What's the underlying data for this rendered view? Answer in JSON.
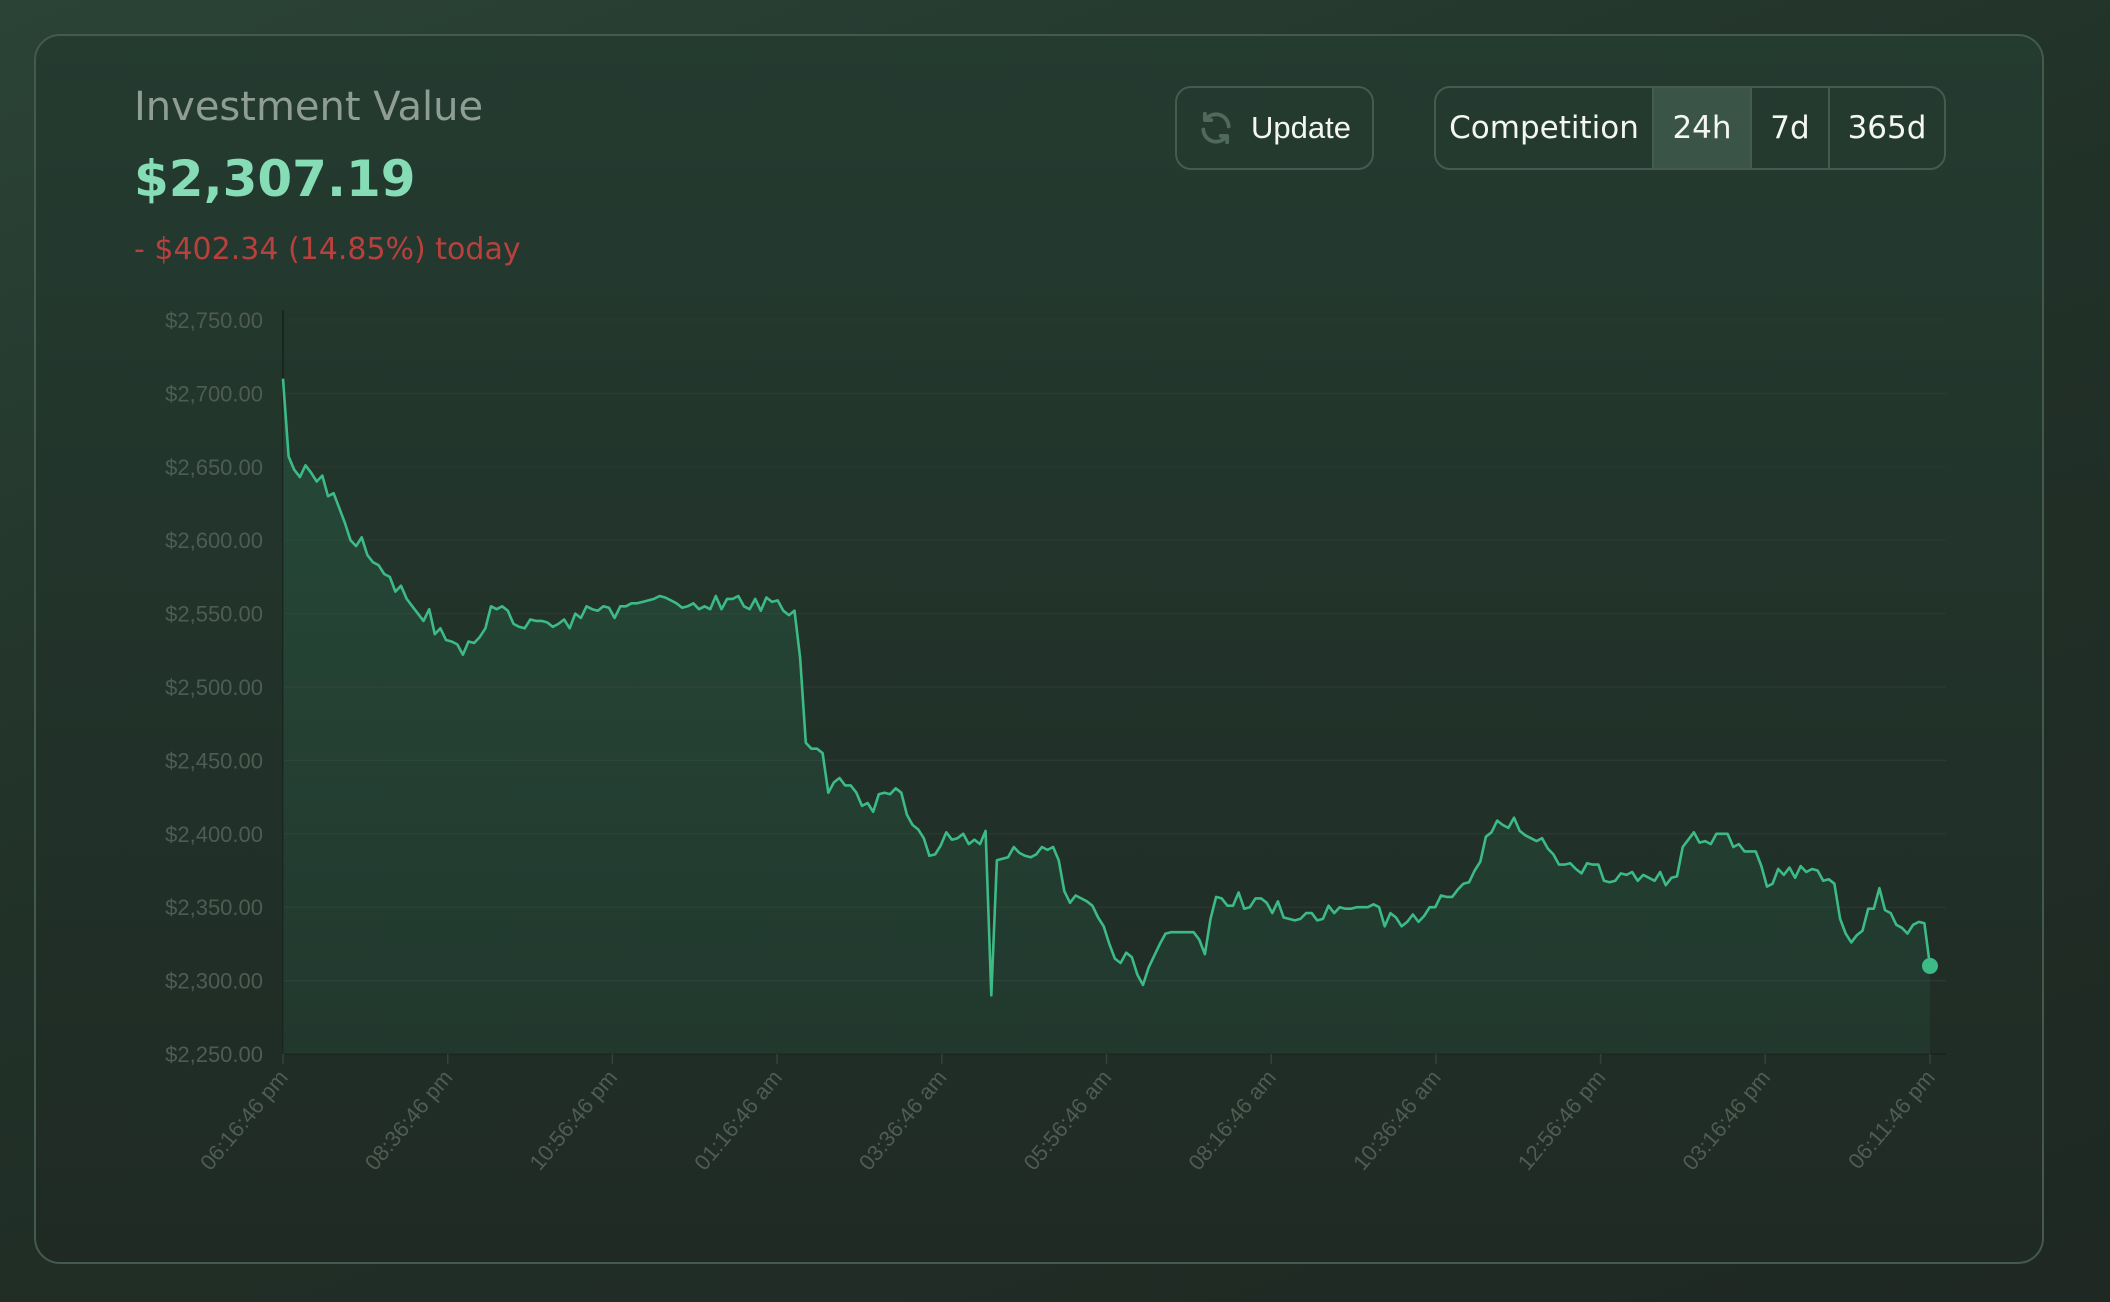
{
  "header": {
    "title": "Investment Value",
    "value": "$2,307.19",
    "change": "- $402.34 (14.85%) today"
  },
  "controls": {
    "update_label": "Update",
    "ranges": [
      {
        "label": "Competition",
        "active": false
      },
      {
        "label": "24h",
        "active": true
      },
      {
        "label": "7d",
        "active": false
      },
      {
        "label": "365d",
        "active": false
      }
    ]
  },
  "colors": {
    "line": "#3dbb86",
    "value": "#86dcb5",
    "negative": "#b8403d",
    "active_range": "#3a5547"
  },
  "chart_data": {
    "type": "area",
    "title": "",
    "xlabel": "",
    "ylabel": "",
    "ylim": [
      2250,
      2750
    ],
    "y_ticks": [
      "$2,250.00",
      "$2,300.00",
      "$2,350.00",
      "$2,400.00",
      "$2,450.00",
      "$2,500.00",
      "$2,550.00",
      "$2,600.00",
      "$2,650.00",
      "$2,700.00",
      "$2,750.00"
    ],
    "x_ticks": [
      "06:16:46 pm",
      "08:36:46 pm",
      "10:56:46 pm",
      "01:16:46 am",
      "03:36:46 am",
      "05:56:46 am",
      "08:16:46 am",
      "10:36:46 am",
      "12:56:46 pm",
      "03:16:46 pm",
      "06:11:46 pm"
    ],
    "grid": true,
    "series": [
      {
        "values": [
          2710,
          2657,
          2648,
          2643,
          2651,
          2646,
          2640,
          2644,
          2630,
          2632,
          2622,
          2612,
          2600,
          2596,
          2602,
          2590,
          2585,
          2583,
          2577,
          2575,
          2565,
          2569,
          2560,
          2555,
          2550,
          2545,
          2553,
          2536,
          2540,
          2532,
          2531,
          2529,
          2522,
          2531,
          2530,
          2534,
          2540,
          2555,
          2553,
          2555,
          2552,
          2543,
          2541,
          2540,
          2546,
          2545,
          2545,
          2544,
          2541,
          2543,
          2546,
          2540,
          2550,
          2547,
          2555,
          2553,
          2552,
          2555,
          2554,
          2547,
          2555,
          2555,
          2557,
          2557,
          2558,
          2559,
          2560,
          2562,
          2561,
          2559,
          2557,
          2554,
          2555,
          2557,
          2553,
          2555,
          2553,
          2562,
          2553,
          2560,
          2560,
          2562,
          2555,
          2553,
          2560,
          2552,
          2561,
          2558,
          2559,
          2552,
          2549,
          2552,
          2520,
          2462,
          2458,
          2458,
          2455,
          2428,
          2435,
          2438,
          2433,
          2433,
          2428,
          2419,
          2421,
          2415,
          2427,
          2428,
          2427,
          2431,
          2428,
          2413,
          2406,
          2403,
          2397,
          2385,
          2386,
          2392,
          2401,
          2396,
          2397,
          2400,
          2393,
          2396,
          2393,
          2402,
          2290,
          2382,
          2383,
          2384,
          2391,
          2387,
          2385,
          2384,
          2386,
          2391,
          2389,
          2391,
          2382,
          2361,
          2353,
          2358,
          2356,
          2354,
          2351,
          2343,
          2337,
          2325,
          2315,
          2312,
          2319,
          2316,
          2304,
          2297,
          2309,
          2317,
          2325,
          2332,
          2333,
          2333,
          2333,
          2333,
          2333,
          2328,
          2318,
          2342,
          2357,
          2356,
          2351,
          2351,
          2360,
          2349,
          2350,
          2356,
          2356,
          2353,
          2346,
          2354,
          2343,
          2342,
          2341,
          2342,
          2346,
          2346,
          2341,
          2342,
          2351,
          2346,
          2350,
          2349,
          2349,
          2350,
          2350,
          2350,
          2352,
          2350,
          2337,
          2346,
          2343,
          2337,
          2340,
          2345,
          2340,
          2344,
          2350,
          2350,
          2358,
          2357,
          2357,
          2362,
          2366,
          2367,
          2375,
          2381,
          2398,
          2401,
          2409,
          2406,
          2404,
          2411,
          2402,
          2399,
          2397,
          2395,
          2397,
          2390,
          2386,
          2379,
          2379,
          2380,
          2376,
          2373,
          2380,
          2379,
          2379,
          2368,
          2367,
          2368,
          2373,
          2372,
          2374,
          2368,
          2372,
          2370,
          2368,
          2374,
          2365,
          2370,
          2371,
          2391,
          2396,
          2401,
          2394,
          2395,
          2393,
          2400,
          2400,
          2400,
          2391,
          2393,
          2388,
          2388,
          2388,
          2378,
          2364,
          2366,
          2376,
          2372,
          2377,
          2370,
          2378,
          2374,
          2376,
          2375,
          2368,
          2369,
          2366,
          2342,
          2332,
          2326,
          2331,
          2334,
          2349,
          2349,
          2363,
          2348,
          2346,
          2338,
          2336,
          2332,
          2338,
          2340,
          2339,
          2310
        ]
      }
    ]
  }
}
